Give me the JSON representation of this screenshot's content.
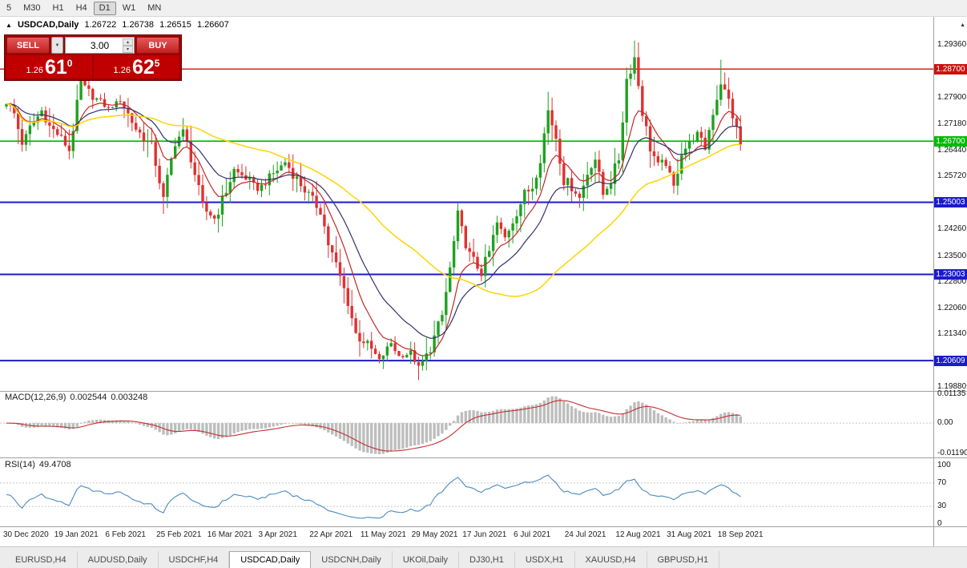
{
  "toolbar": {
    "timeframes": [
      {
        "label": "5",
        "active": false
      },
      {
        "label": "M30",
        "active": false
      },
      {
        "label": "H1",
        "active": false
      },
      {
        "label": "H4",
        "active": false
      },
      {
        "label": "D1",
        "active": true
      },
      {
        "label": "W1",
        "active": false
      },
      {
        "label": "MN",
        "active": false
      }
    ]
  },
  "header": {
    "collapse_icon": "▲",
    "symbol": "USDCAD,Daily",
    "open": "1.26722",
    "high": "1.26738",
    "low": "1.26515",
    "close": "1.26607"
  },
  "trade_panel": {
    "sell_label": "SELL",
    "buy_label": "BUY",
    "volume": "3.00",
    "bid": {
      "big_figure": "1.26",
      "pips": "61",
      "pipette": "0"
    },
    "ask": {
      "big_figure": "1.26",
      "pips": "62",
      "pipette": "5"
    }
  },
  "indicators": {
    "macd": {
      "name": "MACD(12,26,9)",
      "main_value": "0.002544",
      "signal_value": "0.003248",
      "axis_labels": [
        {
          "text": "0.01135",
          "value": 0.01135
        },
        {
          "text": "0.00",
          "value": 0
        },
        {
          "text": "-0.01190",
          "value": -0.0119
        }
      ]
    },
    "rsi": {
      "name": "RSI(14)",
      "value": "49.4708",
      "axis_labels": [
        {
          "text": "100",
          "value": 100
        },
        {
          "text": "70",
          "value": 70
        },
        {
          "text": "30",
          "value": 30
        },
        {
          "text": "0",
          "value": 0
        }
      ]
    }
  },
  "price_axis": {
    "scroll_icon": "▲",
    "ticks": [
      "1.29360",
      "1.27900",
      "1.27180",
      "1.26440",
      "1.25720",
      "1.24260",
      "1.23500",
      "1.22800",
      "1.22060",
      "1.21340",
      "1.19880"
    ]
  },
  "tabs": [
    "EURUSD,H4",
    "AUDUSD,Daily",
    "USDCHF,H4",
    "USDCAD,Daily",
    "USDCNH,Daily",
    "UKOil,Daily",
    "DJ30,H1",
    "USDX,H1",
    "XAUUSD,H4",
    "GBPUSD,H1"
  ],
  "active_tab": "USDCAD,Daily",
  "colors": {
    "candle_up": "#1fa11f",
    "candle_down": "#e03030",
    "ma_fast": "#c22727",
    "ma_mid": "#30306e",
    "ma_slow": "#ffd400",
    "macd_hist": "#bdbdbd",
    "macd_signal": "#c03030",
    "rsi_line": "#4a8bc2"
  },
  "chart_data": {
    "type": "candlestick",
    "symbol": "USDCAD",
    "timeframe": "Daily",
    "bars": 188,
    "bars_per_label": 13,
    "date_labels": [
      "30 Dec 2020",
      "19 Jan 2021",
      "6 Feb 2021",
      "25 Feb 2021",
      "16 Mar 2021",
      "3 Apr 2021",
      "22 Apr 2021",
      "11 May 2021",
      "29 May 2021",
      "17 Jun 2021",
      "6 Jul 2021",
      "24 Jul 2021",
      "12 Aug 2021",
      "31 Aug 2021",
      "18 Sep 2021"
    ],
    "ylim": [
      1.1979,
      1.3006
    ],
    "hlines": [
      {
        "price": 1.287,
        "label": "1.28700",
        "color": "#cc1111",
        "type": "resistance"
      },
      {
        "price": 1.267,
        "label": "1.26700",
        "color": "#00bb00",
        "type": "current"
      },
      {
        "price": 1.25003,
        "label": "1.25003",
        "color": "#1b1bc8",
        "type": "support"
      },
      {
        "price": 1.23003,
        "label": "1.23003",
        "color": "#1b1bc8",
        "type": "support"
      },
      {
        "price": 1.20609,
        "label": "1.20609",
        "color": "#1b1bc8",
        "type": "support"
      }
    ],
    "close_path_anchors": [
      [
        0,
        1.278
      ],
      [
        2,
        1.2745
      ],
      [
        4,
        1.2665
      ],
      [
        6,
        1.2705
      ],
      [
        9,
        1.2755
      ],
      [
        11,
        1.271
      ],
      [
        13,
        1.269
      ],
      [
        16,
        1.2645
      ],
      [
        19,
        1.283
      ],
      [
        22,
        1.2795
      ],
      [
        26,
        1.276
      ],
      [
        29,
        1.2785
      ],
      [
        33,
        1.2705
      ],
      [
        37,
        1.2652
      ],
      [
        38,
        1.261
      ],
      [
        40,
        1.2512
      ],
      [
        43,
        1.267
      ],
      [
        45,
        1.2695
      ],
      [
        47,
        1.2625
      ],
      [
        50,
        1.2485
      ],
      [
        53,
        1.2455
      ],
      [
        55,
        1.2505
      ],
      [
        58,
        1.259
      ],
      [
        62,
        1.256
      ],
      [
        64,
        1.2535
      ],
      [
        68,
        1.258
      ],
      [
        71,
        1.2612
      ],
      [
        74,
        1.2565
      ],
      [
        78,
        1.2505
      ],
      [
        80,
        1.248
      ],
      [
        82,
        1.2385
      ],
      [
        84,
        1.2325
      ],
      [
        87,
        1.2225
      ],
      [
        89,
        1.2135
      ],
      [
        92,
        1.2105
      ],
      [
        95,
        1.2062
      ],
      [
        98,
        1.211
      ],
      [
        100,
        1.2072
      ],
      [
        103,
        1.2082
      ],
      [
        105,
        1.2042
      ],
      [
        107,
        1.2072
      ],
      [
        109,
        1.2125
      ],
      [
        111,
        1.2185
      ],
      [
        113,
        1.2315
      ],
      [
        115,
        1.2462
      ],
      [
        118,
        1.2352
      ],
      [
        121,
        1.2302
      ],
      [
        123,
        1.2362
      ],
      [
        125,
        1.2442
      ],
      [
        127,
        1.2402
      ],
      [
        129,
        1.2452
      ],
      [
        132,
        1.2522
      ],
      [
        134,
        1.2545
      ],
      [
        136,
        1.2625
      ],
      [
        138,
        1.2755
      ],
      [
        140,
        1.2682
      ],
      [
        142,
        1.2562
      ],
      [
        144,
        1.2542
      ],
      [
        146,
        1.2512
      ],
      [
        148,
        1.2582
      ],
      [
        150,
        1.2622
      ],
      [
        152,
        1.2522
      ],
      [
        154,
        1.2562
      ],
      [
        156,
        1.2622
      ],
      [
        158,
        1.2842
      ],
      [
        160,
        1.2902
      ],
      [
        162,
        1.2752
      ],
      [
        164,
        1.2652
      ],
      [
        166,
        1.2602
      ],
      [
        168,
        1.2612
      ],
      [
        170,
        1.2542
      ],
      [
        172,
        1.2642
      ],
      [
        174,
        1.2662
      ],
      [
        176,
        1.2692
      ],
      [
        178,
        1.2652
      ],
      [
        180,
        1.2752
      ],
      [
        182,
        1.2832
      ],
      [
        184,
        1.2782
      ],
      [
        187,
        1.2661
      ]
    ],
    "wick_overrides": [
      [
        19,
        "high",
        1.2865
      ],
      [
        40,
        "low",
        1.2468
      ],
      [
        53,
        "low",
        1.244
      ],
      [
        105,
        "low",
        1.2007
      ],
      [
        138,
        "high",
        1.2807
      ],
      [
        160,
        "high",
        1.2949
      ],
      [
        182,
        "high",
        1.2896
      ]
    ],
    "moving_averages": [
      {
        "kind": "ema",
        "period": 9,
        "color": "#c22727"
      },
      {
        "kind": "ema",
        "period": 20,
        "color": "#30306e"
      },
      {
        "kind": "sma",
        "period": 50,
        "color": "#ffd400"
      }
    ],
    "macd_range": {
      "max": 0.01135,
      "min": -0.0119
    },
    "rsi_levels": [
      70,
      30
    ],
    "rsi_range": [
      0,
      100
    ]
  }
}
